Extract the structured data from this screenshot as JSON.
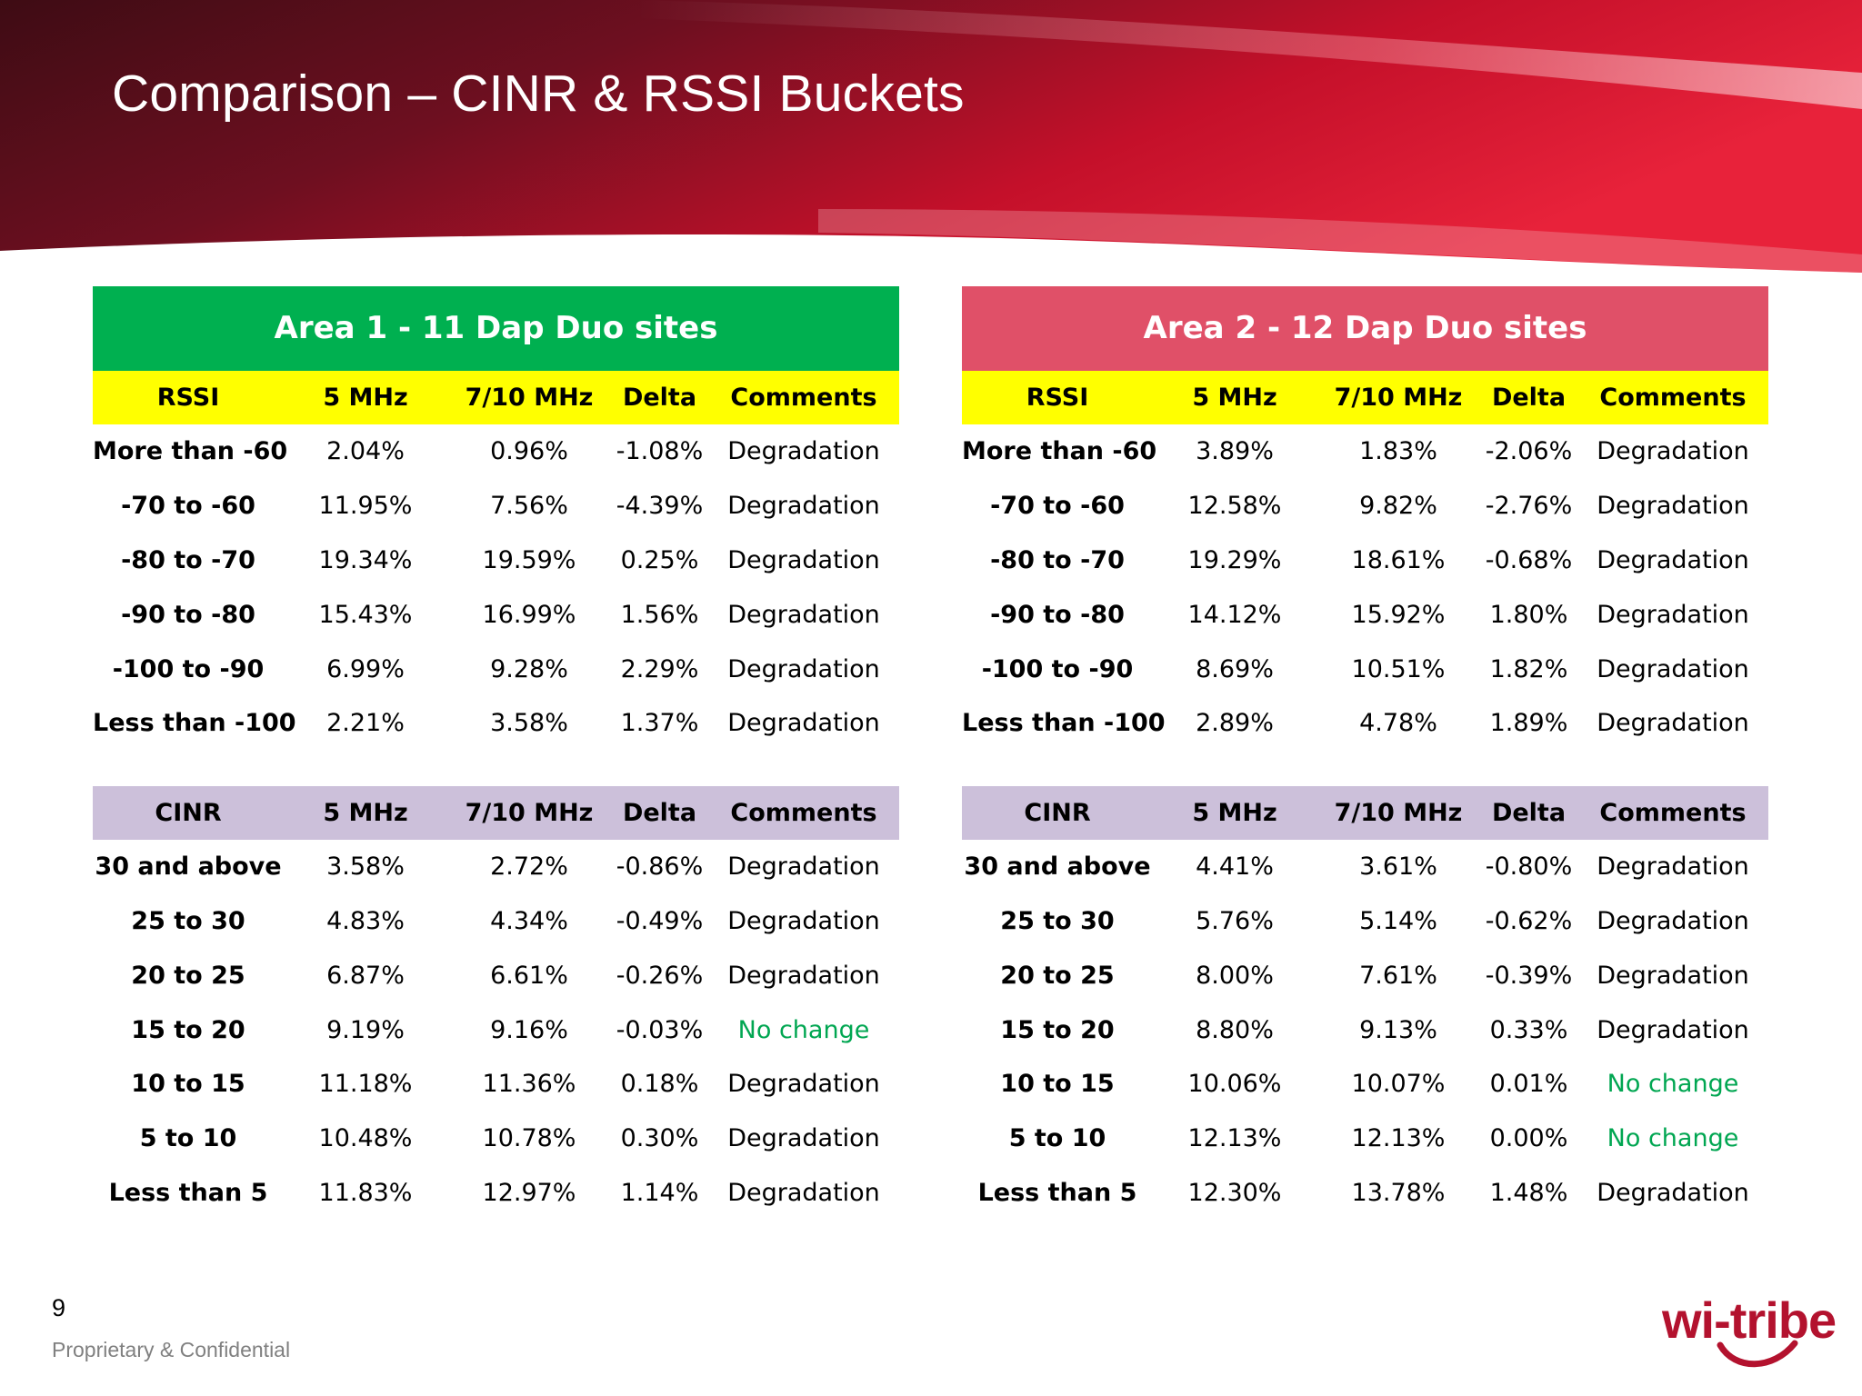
{
  "slide": {
    "title": "Comparison – CINR & RSSI Buckets",
    "page_number": "9",
    "footer": "Proprietary & Confidential",
    "logo_text": "wi-tribe"
  },
  "colors": {
    "area1_header": "#00b050",
    "area2_header": "#e05068",
    "rssi_header": "#ffff00",
    "cinr_header": "#ccc0da",
    "no_change": "#00a651",
    "brand": "#b3122e"
  },
  "areas": [
    {
      "title": "Area 1 - 11 Dap Duo sites",
      "rssi": {
        "columns": [
          "RSSI",
          "5 MHz",
          "7/10 MHz",
          "Delta",
          "Comments"
        ],
        "rows": [
          {
            "label": "More than -60",
            "mhz5": "2.04%",
            "mhz710": "0.96%",
            "delta": "-1.08%",
            "comment": "Degradation",
            "status": "degradation"
          },
          {
            "label": "-70 to -60",
            "mhz5": "11.95%",
            "mhz710": "7.56%",
            "delta": "-4.39%",
            "comment": "Degradation",
            "status": "degradation"
          },
          {
            "label": "-80 to -70",
            "mhz5": "19.34%",
            "mhz710": "19.59%",
            "delta": "0.25%",
            "comment": "Degradation",
            "status": "degradation"
          },
          {
            "label": "-90 to -80",
            "mhz5": "15.43%",
            "mhz710": "16.99%",
            "delta": "1.56%",
            "comment": "Degradation",
            "status": "degradation"
          },
          {
            "label": "-100 to -90",
            "mhz5": "6.99%",
            "mhz710": "9.28%",
            "delta": "2.29%",
            "comment": "Degradation",
            "status": "degradation"
          },
          {
            "label": "Less than -100",
            "mhz5": "2.21%",
            "mhz710": "3.58%",
            "delta": "1.37%",
            "comment": "Degradation",
            "status": "degradation"
          }
        ]
      },
      "cinr": {
        "columns": [
          "CINR",
          "5 MHz",
          "7/10 MHz",
          "Delta",
          "Comments"
        ],
        "rows": [
          {
            "label": "30 and above",
            "mhz5": "3.58%",
            "mhz710": "2.72%",
            "delta": "-0.86%",
            "comment": "Degradation",
            "status": "degradation"
          },
          {
            "label": "25 to 30",
            "mhz5": "4.83%",
            "mhz710": "4.34%",
            "delta": "-0.49%",
            "comment": "Degradation",
            "status": "degradation"
          },
          {
            "label": "20 to 25",
            "mhz5": "6.87%",
            "mhz710": "6.61%",
            "delta": "-0.26%",
            "comment": "Degradation",
            "status": "degradation"
          },
          {
            "label": "15 to 20",
            "mhz5": "9.19%",
            "mhz710": "9.16%",
            "delta": "-0.03%",
            "comment": "No change",
            "status": "nochange"
          },
          {
            "label": "10 to 15",
            "mhz5": "11.18%",
            "mhz710": "11.36%",
            "delta": "0.18%",
            "comment": "Degradation",
            "status": "degradation"
          },
          {
            "label": "5 to 10",
            "mhz5": "10.48%",
            "mhz710": "10.78%",
            "delta": "0.30%",
            "comment": "Degradation",
            "status": "degradation"
          },
          {
            "label": "Less than 5",
            "mhz5": "11.83%",
            "mhz710": "12.97%",
            "delta": "1.14%",
            "comment": "Degradation",
            "status": "degradation"
          }
        ]
      }
    },
    {
      "title": "Area 2 - 12 Dap Duo sites",
      "rssi": {
        "columns": [
          "RSSI",
          "5 MHz",
          "7/10 MHz",
          "Delta",
          "Comments"
        ],
        "rows": [
          {
            "label": "More than -60",
            "mhz5": "3.89%",
            "mhz710": "1.83%",
            "delta": "-2.06%",
            "comment": "Degradation",
            "status": "degradation"
          },
          {
            "label": "-70 to -60",
            "mhz5": "12.58%",
            "mhz710": "9.82%",
            "delta": "-2.76%",
            "comment": "Degradation",
            "status": "degradation"
          },
          {
            "label": "-80 to -70",
            "mhz5": "19.29%",
            "mhz710": "18.61%",
            "delta": "-0.68%",
            "comment": "Degradation",
            "status": "degradation"
          },
          {
            "label": "-90 to -80",
            "mhz5": "14.12%",
            "mhz710": "15.92%",
            "delta": "1.80%",
            "comment": "Degradation",
            "status": "degradation"
          },
          {
            "label": "-100 to -90",
            "mhz5": "8.69%",
            "mhz710": "10.51%",
            "delta": "1.82%",
            "comment": "Degradation",
            "status": "degradation"
          },
          {
            "label": "Less than -100",
            "mhz5": "2.89%",
            "mhz710": "4.78%",
            "delta": "1.89%",
            "comment": "Degradation",
            "status": "degradation"
          }
        ]
      },
      "cinr": {
        "columns": [
          "CINR",
          "5 MHz",
          "7/10 MHz",
          "Delta",
          "Comments"
        ],
        "rows": [
          {
            "label": "30 and above",
            "mhz5": "4.41%",
            "mhz710": "3.61%",
            "delta": "-0.80%",
            "comment": "Degradation",
            "status": "degradation"
          },
          {
            "label": "25 to 30",
            "mhz5": "5.76%",
            "mhz710": "5.14%",
            "delta": "-0.62%",
            "comment": "Degradation",
            "status": "degradation"
          },
          {
            "label": "20 to 25",
            "mhz5": "8.00%",
            "mhz710": "7.61%",
            "delta": "-0.39%",
            "comment": "Degradation",
            "status": "degradation"
          },
          {
            "label": "15 to 20",
            "mhz5": "8.80%",
            "mhz710": "9.13%",
            "delta": "0.33%",
            "comment": "Degradation",
            "status": "degradation"
          },
          {
            "label": "10 to 15",
            "mhz5": "10.06%",
            "mhz710": "10.07%",
            "delta": "0.01%",
            "comment": "No change",
            "status": "nochange"
          },
          {
            "label": "5 to 10",
            "mhz5": "12.13%",
            "mhz710": "12.13%",
            "delta": "0.00%",
            "comment": "No change",
            "status": "nochange"
          },
          {
            "label": "Less than 5",
            "mhz5": "12.30%",
            "mhz710": "13.78%",
            "delta": "1.48%",
            "comment": "Degradation",
            "status": "degradation"
          }
        ]
      }
    }
  ]
}
